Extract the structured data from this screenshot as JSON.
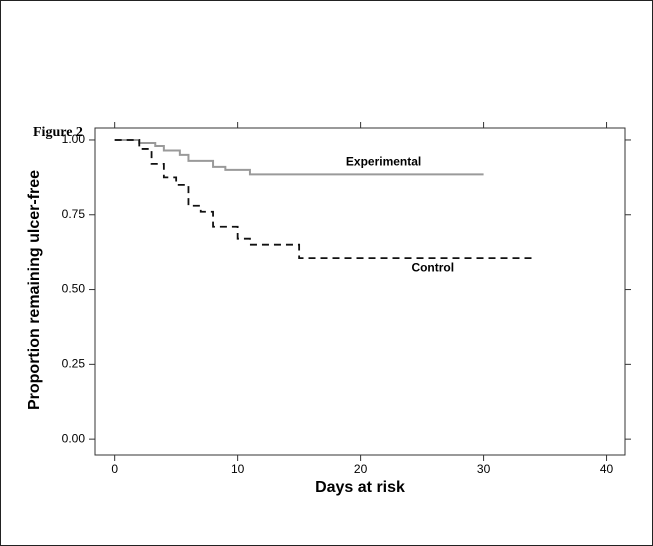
{
  "figure_label": "Figure 2",
  "chart_data": {
    "type": "step",
    "x_label": "Days at risk",
    "y_label": "Proportion remaining ulcer-free",
    "xlim": [
      -1.6,
      41.5
    ],
    "ylim": [
      -0.053,
      1.04
    ],
    "xticks": [
      0,
      10,
      20,
      30,
      40
    ],
    "yticks": [
      {
        "value": 0,
        "label": "0.00"
      },
      0.25,
      {
        "value": 0.5,
        "label": "0.50"
      },
      0.75,
      {
        "value": 1,
        "label": "1.00"
      }
    ],
    "series": [
      {
        "name": "Experimental",
        "color": "#9a9a9a",
        "dashed": false,
        "x": [
          0,
          2,
          3.3,
          4,
          5.3,
          6,
          8,
          9,
          11,
          30
        ],
        "values": [
          1,
          0.99,
          0.98,
          0.965,
          0.95,
          0.93,
          0.91,
          0.9,
          0.885,
          0.885
        ]
      },
      {
        "name": "Control",
        "color": "#111111",
        "dashed": true,
        "x": [
          0,
          2,
          3,
          4,
          5,
          6,
          7,
          8,
          10,
          11,
          15,
          34
        ],
        "values": [
          1,
          0.97,
          0.92,
          0.875,
          0.85,
          0.78,
          0.76,
          0.71,
          0.67,
          0.65,
          0.605,
          0.605
        ]
      }
    ]
  }
}
